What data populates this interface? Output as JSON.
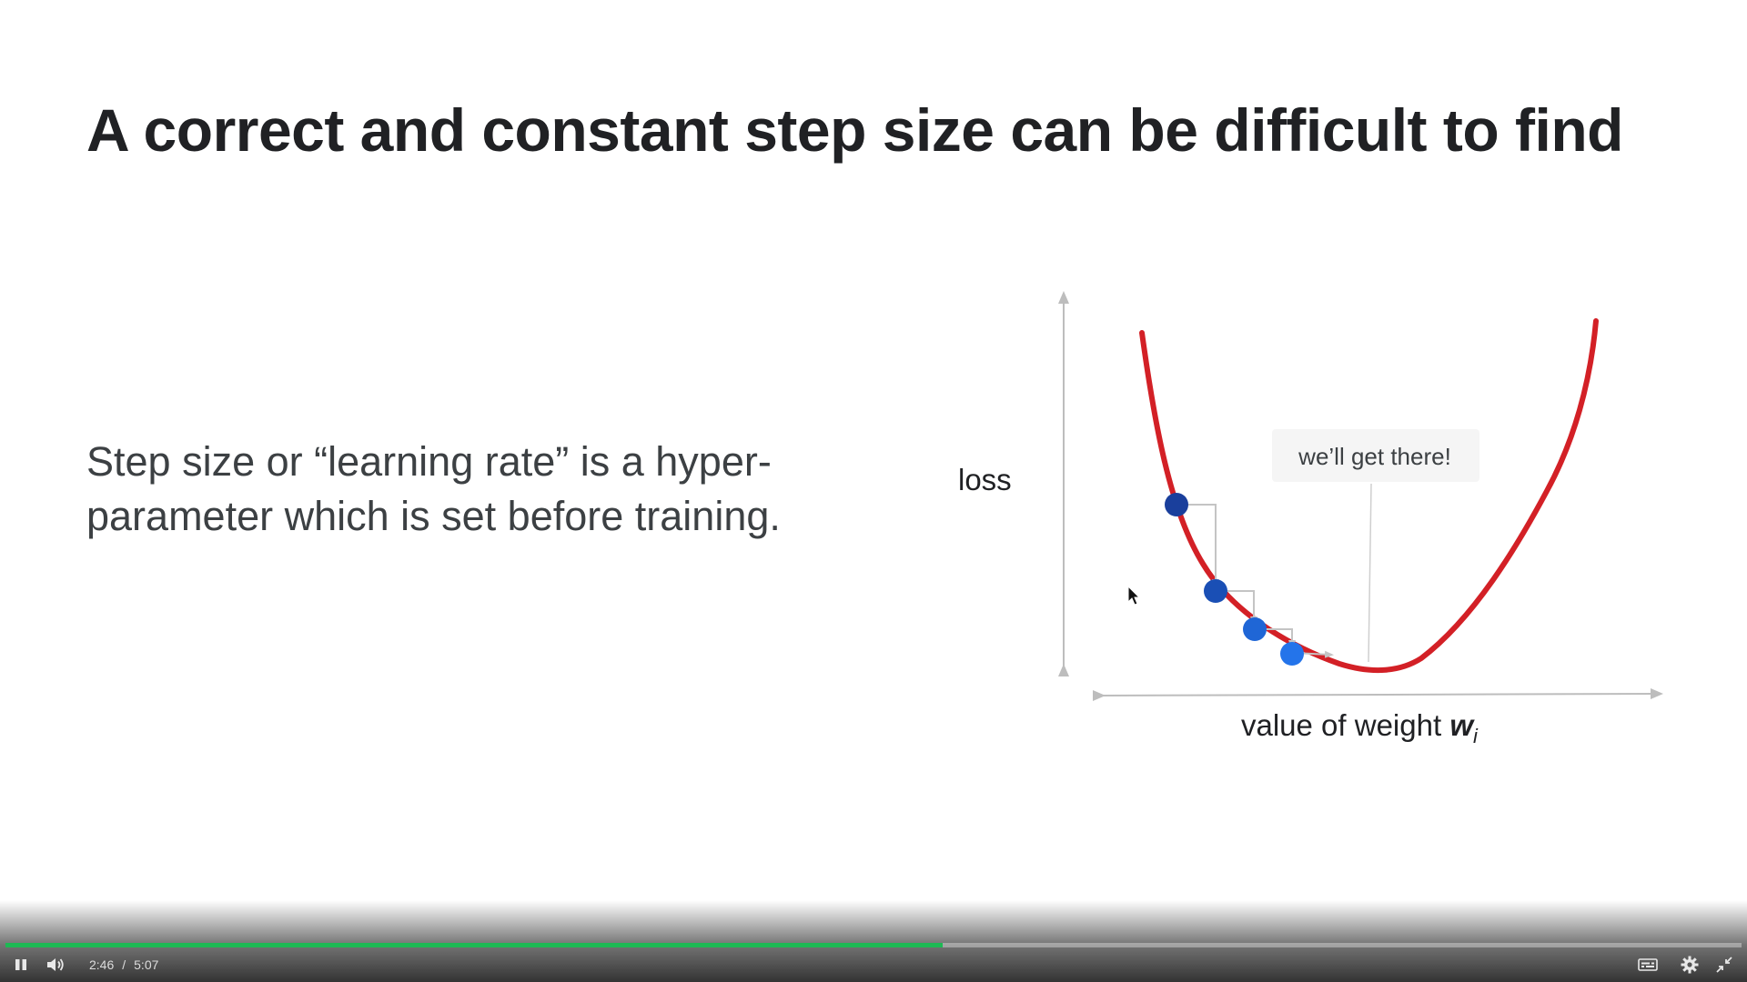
{
  "slide": {
    "title": "A correct and constant step size can be difficult to find",
    "body": "Step size or “learning rate” is a hyper-parameter which is set before training."
  },
  "diagram": {
    "y_axis_label": "loss",
    "x_axis_label": "value of weight ",
    "x_axis_symbol": "w",
    "x_axis_subscript": "i",
    "callout": "we’ll get there!",
    "curve_color": "#d32026",
    "point_colors": [
      "#1a3f9c",
      "#1a4fb5",
      "#1f66d6",
      "#2474ea"
    ]
  },
  "player": {
    "current_time": "2:46",
    "separator": "/",
    "duration": "5:07",
    "progress": 0.54,
    "progress_color": "#1db954",
    "icons": {
      "play_pause": "pause-icon",
      "volume": "volume-icon",
      "captions": "captions-icon",
      "settings": "gear-icon",
      "fullscreen": "exit-fullscreen-icon"
    }
  }
}
